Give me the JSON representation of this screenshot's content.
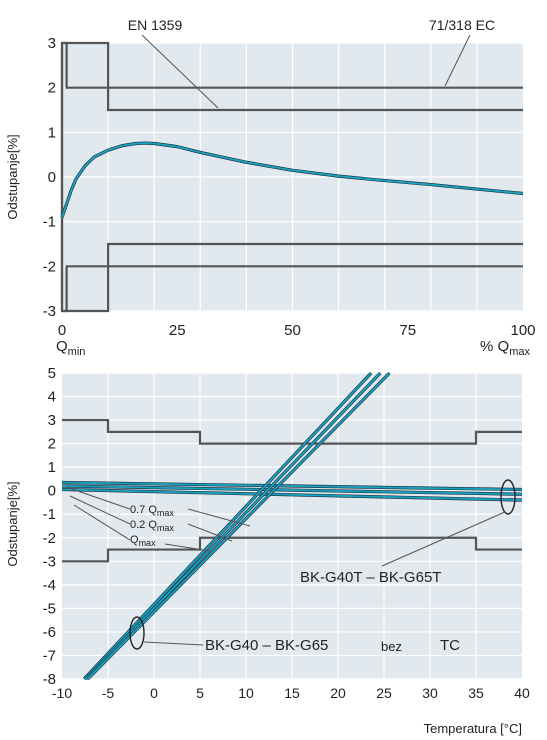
{
  "colors": {
    "panel_bg": "#e1e9ef",
    "grid": "#ffffff",
    "limit": "#555555",
    "curve": "#1aa0b8",
    "curve_shadow": "#1a2a40",
    "text": "#222222"
  },
  "chart_data": [
    {
      "type": "line",
      "title": "",
      "ylabel": "Odstupanje[%]",
      "xlabel_left": "Q",
      "xlabel_left_sub": "min",
      "xlabel_right": "% Q",
      "xlabel_right_sub": "max",
      "xlim": [
        0,
        100
      ],
      "ylim": [
        -3,
        3
      ],
      "xticks": [
        "0",
        "25",
        "50",
        "75",
        "100"
      ],
      "yticks": [
        "3",
        "2",
        "1",
        "0",
        "-1",
        "-2",
        "-3"
      ],
      "grid": true,
      "annotations": [
        "EN 1359",
        "71/318 EC"
      ],
      "series": [
        {
          "kind": "limit",
          "x": [
            0,
            0,
            1,
            1,
            100
          ],
          "y": [
            -3,
            3,
            3,
            2,
            2
          ]
        },
        {
          "kind": "limit",
          "x": [
            0,
            0,
            1,
            1,
            100
          ],
          "y": [
            3,
            -3,
            -3,
            -2,
            -2
          ]
        },
        {
          "kind": "limit",
          "x": [
            0,
            10,
            10,
            100
          ],
          "y": [
            3,
            3,
            1.5,
            1.5
          ]
        },
        {
          "kind": "limit",
          "x": [
            0,
            10,
            10,
            100
          ],
          "y": [
            -3,
            -3,
            -1.5,
            -1.5
          ]
        },
        {
          "kind": "curve",
          "x": [
            0,
            1,
            2,
            3,
            5,
            7,
            10,
            13,
            16,
            18,
            20,
            25,
            30,
            40,
            50,
            60,
            70,
            80,
            90,
            100
          ],
          "y": [
            -0.9,
            -0.6,
            -0.3,
            -0.05,
            0.25,
            0.45,
            0.6,
            0.7,
            0.75,
            0.76,
            0.75,
            0.68,
            0.55,
            0.33,
            0.15,
            0.02,
            -0.08,
            -0.17,
            -0.27,
            -0.37
          ]
        }
      ]
    },
    {
      "type": "line",
      "title": "",
      "ylabel": "Odstupanje[%]",
      "xlabel": "Temperatura [°C]",
      "xlim": [
        -10,
        40
      ],
      "ylim": [
        -8,
        5
      ],
      "xticks": [
        "-10",
        "-5",
        "0",
        "5",
        "10",
        "15",
        "20",
        "25",
        "30",
        "35",
        "40"
      ],
      "yticks": [
        "5",
        "4",
        "3",
        "2",
        "1",
        "0",
        "-1",
        "-2",
        "-3",
        "-4",
        "-5",
        "-6",
        "-7",
        "-8"
      ],
      "grid": true,
      "annotations": {
        "q07": "0.7 Q",
        "q02": "0.2 Q",
        "qmax": "Q",
        "sub_max": "max",
        "bk_t": "BK-G40T – BK-G65T",
        "bk": "BK-G40 – BK-G65",
        "bez": "bez",
        "tc": "TC"
      },
      "series": [
        {
          "kind": "limit",
          "x": [
            -10,
            -5,
            -5,
            5,
            5,
            35,
            35,
            40
          ],
          "y": [
            3,
            3,
            2.5,
            2.5,
            2,
            2,
            2.5,
            2.5
          ]
        },
        {
          "kind": "limit",
          "x": [
            -10,
            -5,
            -5,
            5,
            5,
            35,
            35,
            40
          ],
          "y": [
            -3,
            -3,
            -2.5,
            -2.5,
            -2,
            -2,
            -2.5,
            -2.5
          ]
        },
        {
          "kind": "curve",
          "x": [
            -10,
            40
          ],
          "y": [
            0.35,
            0.05
          ]
        },
        {
          "kind": "curve",
          "x": [
            -10,
            40
          ],
          "y": [
            0.2,
            -0.15
          ]
        },
        {
          "kind": "curve",
          "x": [
            -10,
            40
          ],
          "y": [
            0.05,
            -0.4
          ]
        },
        {
          "kind": "curve",
          "x": [
            -7.6,
            23.6
          ],
          "y": [
            -8,
            5
          ]
        },
        {
          "kind": "curve",
          "x": [
            -7.4,
            24.6
          ],
          "y": [
            -8,
            5
          ]
        },
        {
          "kind": "curve",
          "x": [
            -7.2,
            25.6
          ],
          "y": [
            -8,
            5
          ]
        }
      ]
    }
  ]
}
